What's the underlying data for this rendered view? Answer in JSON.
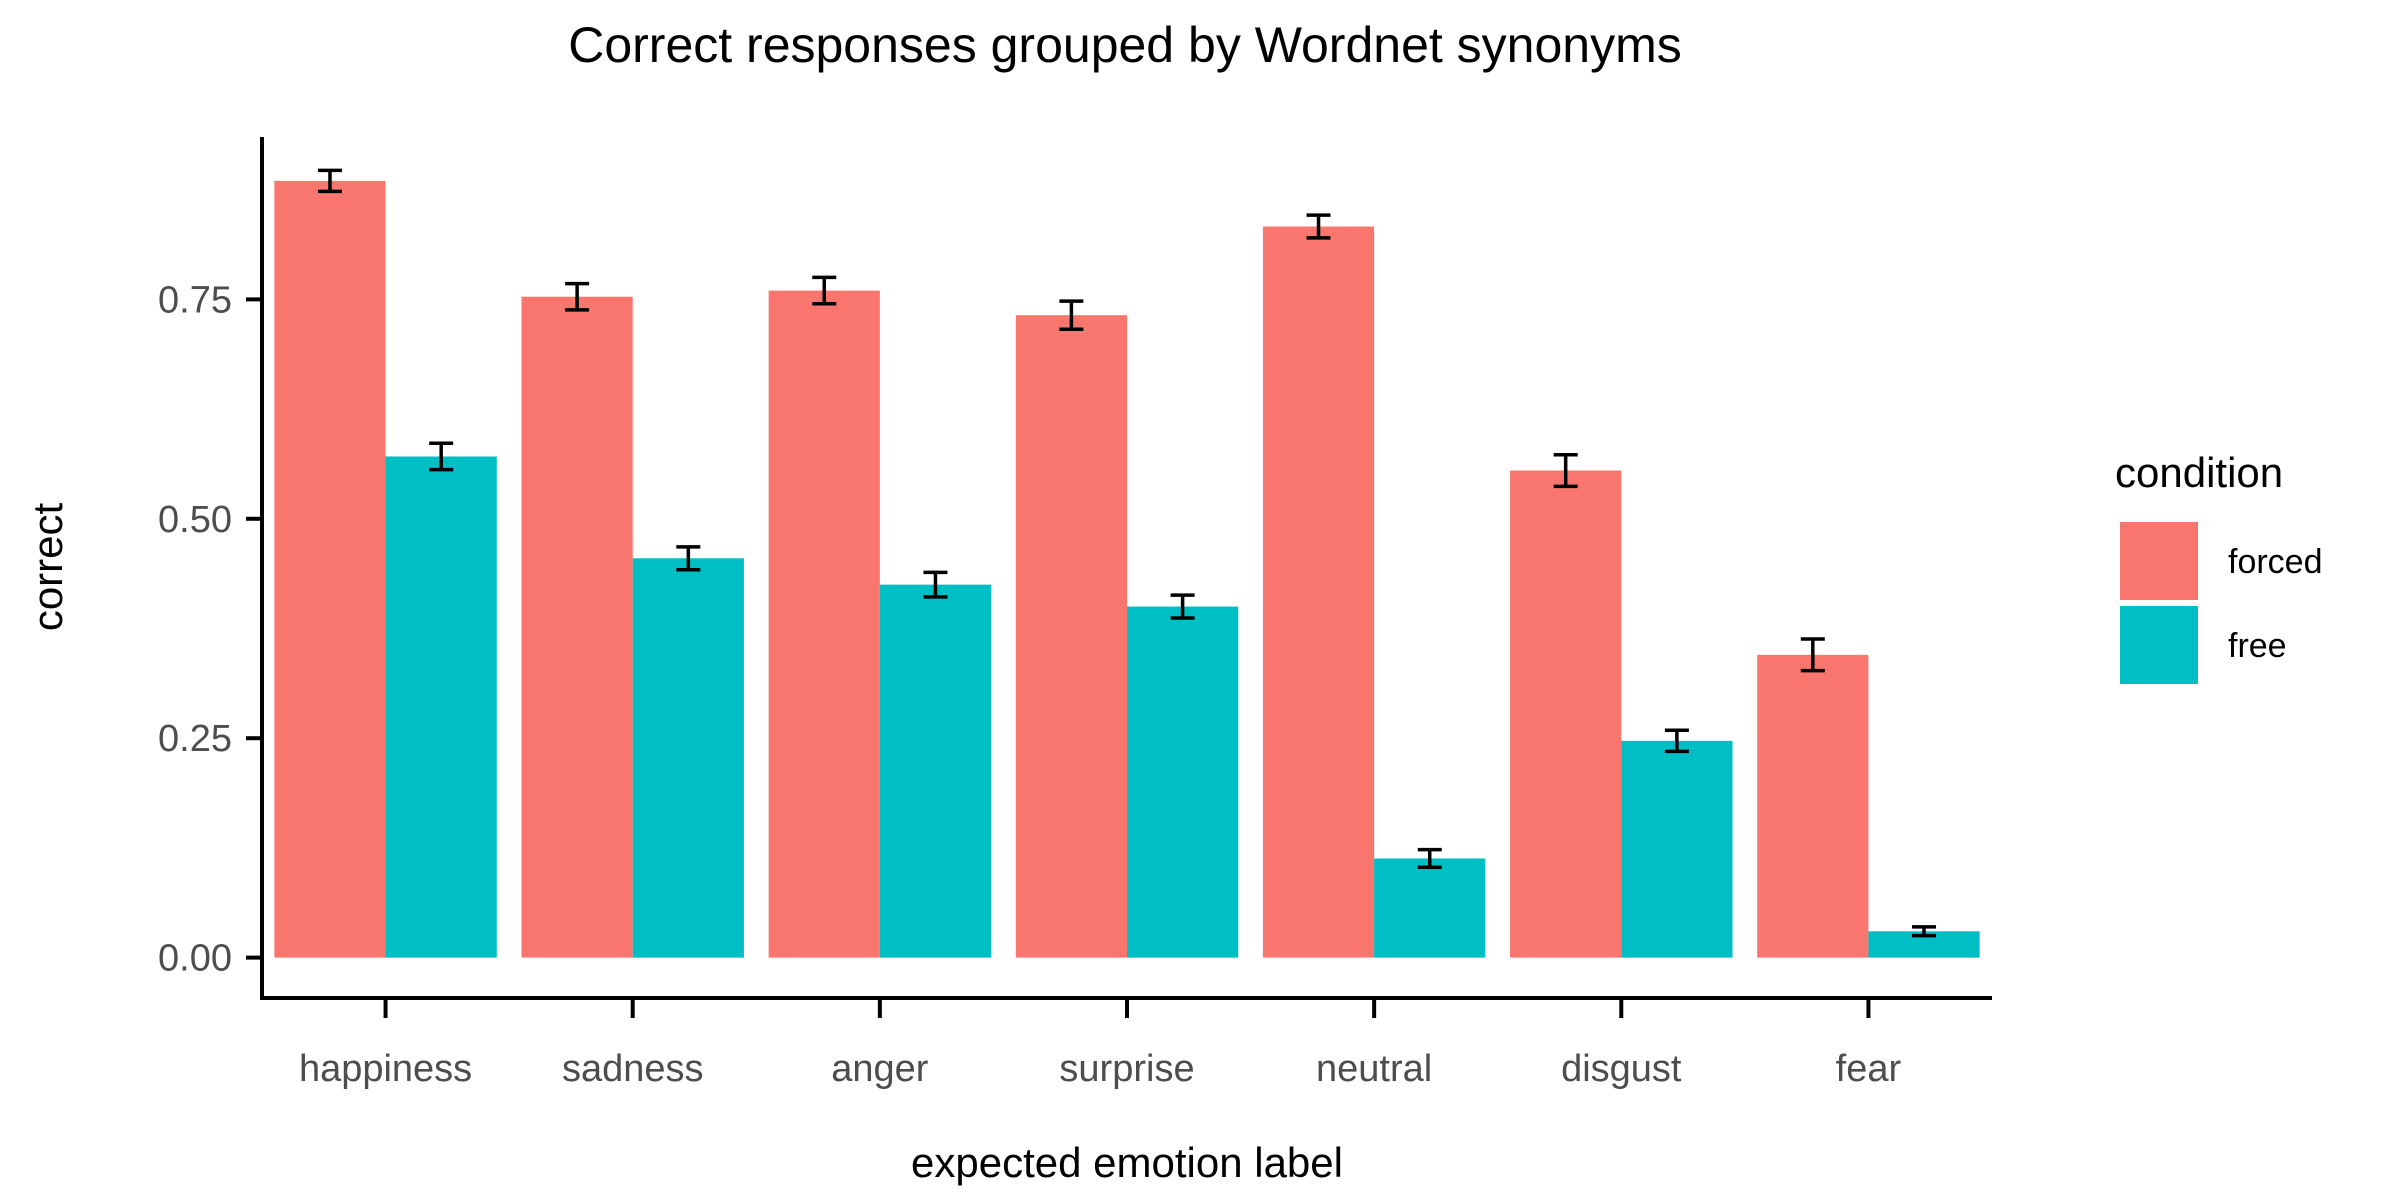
{
  "chart_data": {
    "type": "bar",
    "title": "Correct responses grouped by Wordnet synonyms",
    "xlabel": "expected emotion label",
    "ylabel": "correct",
    "categories": [
      "happiness",
      "sadness",
      "anger",
      "surprise",
      "neutral",
      "disgust",
      "fear"
    ],
    "series": [
      {
        "name": "forced",
        "color": "#F8766D",
        "values": [
          0.885,
          0.753,
          0.76,
          0.732,
          0.833,
          0.555,
          0.345
        ],
        "error": [
          0.012,
          0.015,
          0.015,
          0.016,
          0.013,
          0.018,
          0.018
        ]
      },
      {
        "name": "free",
        "color": "#00BFC4",
        "values": [
          0.571,
          0.455,
          0.425,
          0.4,
          0.113,
          0.247,
          0.03
        ],
        "error": [
          0.015,
          0.013,
          0.014,
          0.013,
          0.01,
          0.012,
          0.005
        ]
      }
    ],
    "yticks": [
      "0.00",
      "0.25",
      "0.50",
      "0.75"
    ],
    "ylim": [
      -0.046,
      0.935
    ],
    "grid": false,
    "legend": {
      "title": "condition",
      "position": "right"
    }
  }
}
